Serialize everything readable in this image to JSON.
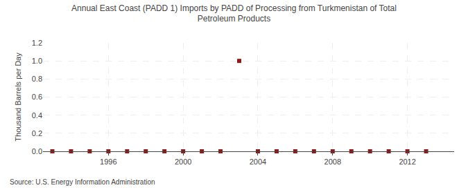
{
  "chart_data": {
    "type": "scatter",
    "title": "Annual East Coast (PADD 1) Imports by PADD of Processing from Turkmenistan of Total\nPetroleum Products",
    "ylabel": "Thousand Barrels per Day",
    "annotations": [
      "Source: U.S. Energy Information Administration"
    ],
    "x": [
      1993,
      1994,
      1995,
      1996,
      1997,
      1998,
      1999,
      2000,
      2001,
      2002,
      2003,
      2004,
      2005,
      2006,
      2007,
      2008,
      2009,
      2010,
      2011,
      2012,
      2013
    ],
    "values": [
      0,
      0,
      0,
      0,
      0,
      0,
      0,
      0,
      0,
      0,
      1.0,
      0,
      0,
      0,
      0,
      0,
      0,
      0,
      0,
      0,
      0
    ],
    "color": "#8b1a1a",
    "marker": "square",
    "xlim": [
      1992.5,
      2014.5
    ],
    "xticks": [
      1996,
      2000,
      2004,
      2008,
      2012
    ],
    "ylim": [
      0.0,
      1.2
    ],
    "yticks": [
      {
        "value": 0,
        "label": "0.0"
      },
      0.2,
      0.4,
      0.6,
      0.8,
      {
        "value": 1,
        "label": "1.0"
      },
      1.2
    ],
    "grid": true
  }
}
